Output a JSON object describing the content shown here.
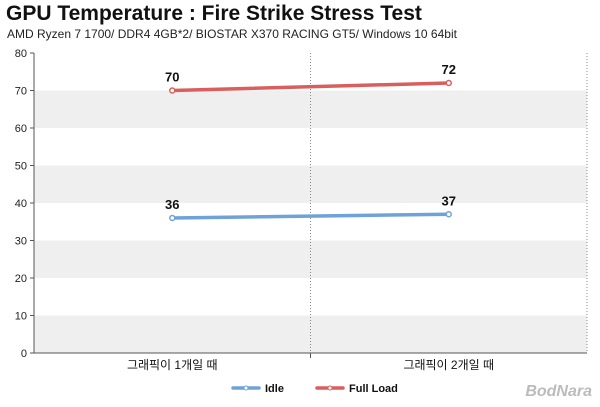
{
  "chart_data": {
    "type": "line",
    "title": "GPU Temperature : Fire Strike Stress Test",
    "subtitle": "AMD Ryzen 7 1700/ DDR4 4GB*2/ BIOSTAR X370 RACING GT5/ Windows 10 64bit",
    "categories": [
      "그래픽이 1개일 때",
      "그래픽이 2개일 때"
    ],
    "series": [
      {
        "name": "Idle",
        "values": [
          36,
          37
        ],
        "color": "#6fa3d8"
      },
      {
        "name": "Full Load",
        "values": [
          70,
          72
        ],
        "color": "#d95f5f"
      }
    ],
    "ylim": [
      0,
      80
    ],
    "yticks": [
      0,
      10,
      20,
      30,
      40,
      50,
      60,
      70,
      80
    ],
    "grid": "alternating horizontal bands",
    "legend": "bottom-center"
  },
  "watermark": "BodNara"
}
